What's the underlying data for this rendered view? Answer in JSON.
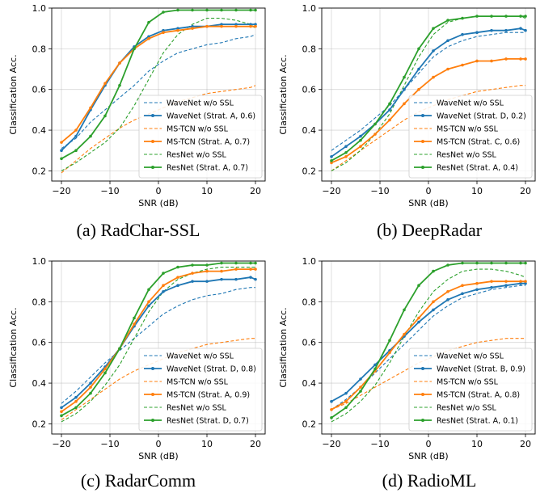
{
  "colors": {
    "WaveNet": "#1f77b4",
    "MS-TCN": "#ff7f0e",
    "ResNet": "#2ca02c"
  },
  "chart_data": [
    {
      "type": "line",
      "caption": "(a) RadChar-SSL",
      "xlabel": "SNR (dB)",
      "ylabel": "Classification Acc.",
      "xlim": [
        -22,
        22
      ],
      "ylim": [
        0.15,
        1.0
      ],
      "xticks": [
        -20,
        -10,
        0,
        10,
        20
      ],
      "yticks": [
        0.2,
        0.4,
        0.6,
        0.8,
        1.0
      ],
      "grid": true,
      "legend_position": "lower-right",
      "series": [
        {
          "name": "WaveNet w/o SSL",
          "model": "WaveNet",
          "style": "dashed",
          "x": [
            -20,
            -17,
            -14,
            -11,
            -8,
            -5,
            -2,
            1,
            4,
            7,
            10,
            13,
            16,
            19,
            20
          ],
          "y": [
            0.31,
            0.36,
            0.44,
            0.5,
            0.56,
            0.62,
            0.69,
            0.74,
            0.78,
            0.8,
            0.82,
            0.83,
            0.85,
            0.86,
            0.87
          ]
        },
        {
          "name": "WaveNet (Strat. A, 0.6)",
          "model": "WaveNet",
          "style": "solid",
          "x": [
            -20,
            -17,
            -14,
            -11,
            -8,
            -5,
            -2,
            1,
            4,
            7,
            10,
            13,
            16,
            19,
            20
          ],
          "y": [
            0.3,
            0.37,
            0.5,
            0.62,
            0.73,
            0.81,
            0.86,
            0.89,
            0.9,
            0.91,
            0.91,
            0.92,
            0.92,
            0.92,
            0.92
          ]
        },
        {
          "name": "MS-TCN w/o SSL",
          "model": "MS-TCN",
          "style": "dashed",
          "x": [
            -20,
            -17,
            -14,
            -11,
            -8,
            -5,
            -2,
            1,
            4,
            7,
            10,
            13,
            16,
            19,
            20
          ],
          "y": [
            0.19,
            0.25,
            0.31,
            0.36,
            0.41,
            0.45,
            0.48,
            0.51,
            0.54,
            0.56,
            0.58,
            0.59,
            0.6,
            0.61,
            0.62
          ]
        },
        {
          "name": "MS-TCN (Strat. A, 0.7)",
          "model": "MS-TCN",
          "style": "solid",
          "x": [
            -20,
            -17,
            -14,
            -11,
            -8,
            -5,
            -2,
            1,
            4,
            7,
            10,
            13,
            16,
            19,
            20
          ],
          "y": [
            0.34,
            0.4,
            0.51,
            0.63,
            0.73,
            0.8,
            0.85,
            0.88,
            0.89,
            0.9,
            0.91,
            0.91,
            0.91,
            0.91,
            0.91
          ]
        },
        {
          "name": "ResNet w/o SSL",
          "model": "ResNet",
          "style": "dashed",
          "x": [
            -20,
            -17,
            -14,
            -11,
            -8,
            -5,
            -2,
            1,
            4,
            7,
            10,
            13,
            16,
            19,
            20
          ],
          "y": [
            0.2,
            0.24,
            0.29,
            0.34,
            0.41,
            0.52,
            0.65,
            0.78,
            0.87,
            0.92,
            0.95,
            0.95,
            0.94,
            0.92,
            0.9
          ]
        },
        {
          "name": "ResNet (Strat. A, 0.7)",
          "model": "ResNet",
          "style": "solid",
          "x": [
            -20,
            -17,
            -14,
            -11,
            -8,
            -5,
            -2,
            1,
            4,
            7,
            10,
            13,
            16,
            19,
            20
          ],
          "y": [
            0.26,
            0.3,
            0.37,
            0.47,
            0.62,
            0.8,
            0.93,
            0.98,
            0.99,
            0.99,
            0.99,
            0.99,
            0.99,
            0.99,
            0.99
          ]
        }
      ]
    },
    {
      "type": "line",
      "caption": "(b) DeepRadar",
      "xlabel": "SNR (dB)",
      "ylabel": "Classification Acc.",
      "xlim": [
        -22,
        22
      ],
      "ylim": [
        0.15,
        1.0
      ],
      "xticks": [
        -20,
        -10,
        0,
        10,
        20
      ],
      "yticks": [
        0.2,
        0.4,
        0.6,
        0.8,
        1.0
      ],
      "grid": true,
      "legend_position": "lower-right",
      "series": [
        {
          "name": "WaveNet w/o SSL",
          "model": "WaveNet",
          "style": "dashed",
          "x": [
            -20,
            -17,
            -14,
            -11,
            -8,
            -5,
            -2,
            1,
            4,
            7,
            10,
            13,
            16,
            19,
            20
          ],
          "y": [
            0.3,
            0.35,
            0.4,
            0.46,
            0.52,
            0.6,
            0.68,
            0.76,
            0.81,
            0.84,
            0.86,
            0.87,
            0.88,
            0.88,
            0.88
          ]
        },
        {
          "name": "WaveNet (Strat. D, 0.2)",
          "model": "WaveNet",
          "style": "solid",
          "x": [
            -20,
            -17,
            -14,
            -11,
            -8,
            -5,
            -2,
            1,
            4,
            7,
            10,
            13,
            16,
            19,
            20
          ],
          "y": [
            0.27,
            0.32,
            0.37,
            0.43,
            0.5,
            0.6,
            0.7,
            0.79,
            0.84,
            0.87,
            0.88,
            0.89,
            0.89,
            0.9,
            0.89
          ]
        },
        {
          "name": "MS-TCN w/o SSL",
          "model": "MS-TCN",
          "style": "dashed",
          "x": [
            -20,
            -17,
            -14,
            -11,
            -8,
            -5,
            -2,
            1,
            4,
            7,
            10,
            13,
            16,
            19,
            20
          ],
          "y": [
            0.2,
            0.25,
            0.3,
            0.35,
            0.4,
            0.45,
            0.49,
            0.52,
            0.55,
            0.57,
            0.59,
            0.6,
            0.61,
            0.62,
            0.62
          ]
        },
        {
          "name": "MS-TCN (Strat. C, 0.6)",
          "model": "MS-TCN",
          "style": "solid",
          "x": [
            -20,
            -17,
            -14,
            -11,
            -8,
            -5,
            -2,
            1,
            4,
            7,
            10,
            13,
            16,
            19,
            20
          ],
          "y": [
            0.24,
            0.27,
            0.32,
            0.38,
            0.45,
            0.53,
            0.6,
            0.66,
            0.7,
            0.72,
            0.74,
            0.74,
            0.75,
            0.75,
            0.75
          ]
        },
        {
          "name": "ResNet w/o SSL",
          "model": "ResNet",
          "style": "dashed",
          "x": [
            -20,
            -17,
            -14,
            -11,
            -8,
            -5,
            -2,
            1,
            4,
            7,
            10,
            13,
            16,
            19,
            20
          ],
          "y": [
            0.2,
            0.24,
            0.3,
            0.38,
            0.48,
            0.62,
            0.76,
            0.87,
            0.93,
            0.95,
            0.96,
            0.96,
            0.96,
            0.96,
            0.95
          ]
        },
        {
          "name": "ResNet (Strat. A, 0.4)",
          "model": "ResNet",
          "style": "solid",
          "x": [
            -20,
            -17,
            -14,
            -11,
            -8,
            -5,
            -2,
            1,
            4,
            7,
            10,
            13,
            16,
            19,
            20
          ],
          "y": [
            0.25,
            0.29,
            0.35,
            0.43,
            0.53,
            0.66,
            0.8,
            0.9,
            0.94,
            0.95,
            0.96,
            0.96,
            0.96,
            0.96,
            0.96
          ]
        }
      ]
    },
    {
      "type": "line",
      "caption": "(c) RadarComm",
      "xlabel": "SNR (dB)",
      "ylabel": "Classification Acc.",
      "xlim": [
        -22,
        22
      ],
      "ylim": [
        0.15,
        1.0
      ],
      "xticks": [
        -20,
        -10,
        0,
        10,
        20
      ],
      "yticks": [
        0.2,
        0.4,
        0.6,
        0.8,
        1.0
      ],
      "grid": true,
      "legend_position": "lower-right",
      "series": [
        {
          "name": "WaveNet w/o SSL",
          "model": "WaveNet",
          "style": "dashed",
          "x": [
            -20,
            -17,
            -14,
            -11,
            -8,
            -5,
            -2,
            1,
            4,
            7,
            10,
            13,
            16,
            19,
            20
          ],
          "y": [
            0.3,
            0.36,
            0.43,
            0.5,
            0.56,
            0.62,
            0.68,
            0.74,
            0.78,
            0.81,
            0.83,
            0.84,
            0.86,
            0.87,
            0.87
          ]
        },
        {
          "name": "WaveNet (Strat. D, 0.8)",
          "model": "WaveNet",
          "style": "solid",
          "x": [
            -20,
            -17,
            -14,
            -11,
            -8,
            -5,
            -2,
            1,
            4,
            7,
            10,
            13,
            16,
            19,
            20
          ],
          "y": [
            0.28,
            0.33,
            0.4,
            0.48,
            0.57,
            0.68,
            0.78,
            0.85,
            0.88,
            0.9,
            0.9,
            0.91,
            0.91,
            0.92,
            0.91
          ]
        },
        {
          "name": "MS-TCN w/o SSL",
          "model": "MS-TCN",
          "style": "dashed",
          "x": [
            -20,
            -17,
            -14,
            -11,
            -8,
            -5,
            -2,
            1,
            4,
            7,
            10,
            13,
            16,
            19,
            20
          ],
          "y": [
            0.22,
            0.27,
            0.32,
            0.37,
            0.42,
            0.46,
            0.49,
            0.52,
            0.55,
            0.57,
            0.59,
            0.6,
            0.61,
            0.62,
            0.62
          ]
        },
        {
          "name": "MS-TCN (Strat. A, 0.9)",
          "model": "MS-TCN",
          "style": "solid",
          "x": [
            -20,
            -17,
            -14,
            -11,
            -8,
            -5,
            -2,
            1,
            4,
            7,
            10,
            13,
            16,
            19,
            20
          ],
          "y": [
            0.26,
            0.31,
            0.38,
            0.47,
            0.57,
            0.69,
            0.8,
            0.88,
            0.92,
            0.94,
            0.95,
            0.95,
            0.96,
            0.96,
            0.96
          ]
        },
        {
          "name": "ResNet w/o SSL",
          "model": "ResNet",
          "style": "dashed",
          "x": [
            -20,
            -17,
            -14,
            -11,
            -8,
            -5,
            -2,
            1,
            4,
            7,
            10,
            13,
            16,
            19,
            20
          ],
          "y": [
            0.21,
            0.25,
            0.31,
            0.39,
            0.49,
            0.62,
            0.75,
            0.85,
            0.91,
            0.94,
            0.96,
            0.97,
            0.97,
            0.97,
            0.97
          ]
        },
        {
          "name": "ResNet (Strat. D, 0.7)",
          "model": "ResNet",
          "style": "solid",
          "x": [
            -20,
            -17,
            -14,
            -11,
            -8,
            -5,
            -2,
            1,
            4,
            7,
            10,
            13,
            16,
            19,
            20
          ],
          "y": [
            0.24,
            0.28,
            0.35,
            0.45,
            0.57,
            0.72,
            0.86,
            0.94,
            0.97,
            0.98,
            0.98,
            0.99,
            0.99,
            0.99,
            0.99
          ]
        }
      ]
    },
    {
      "type": "line",
      "caption": "(d) RadioML",
      "xlabel": "SNR (dB)",
      "ylabel": "Classification Acc.",
      "xlim": [
        -22,
        22
      ],
      "ylim": [
        0.15,
        1.0
      ],
      "xticks": [
        -20,
        -10,
        0,
        10,
        20
      ],
      "yticks": [
        0.2,
        0.4,
        0.6,
        0.8,
        1.0
      ],
      "grid": true,
      "legend_position": "lower-right",
      "series": [
        {
          "name": "WaveNet w/o SSL",
          "model": "WaveNet",
          "style": "dashed",
          "x": [
            -20,
            -17,
            -14,
            -11,
            -8,
            -5,
            -2,
            1,
            4,
            7,
            10,
            13,
            16,
            19,
            20
          ],
          "y": [
            0.27,
            0.32,
            0.38,
            0.45,
            0.52,
            0.59,
            0.66,
            0.73,
            0.78,
            0.82,
            0.84,
            0.86,
            0.87,
            0.88,
            0.88
          ]
        },
        {
          "name": "WaveNet (Strat. B, 0.9)",
          "model": "WaveNet",
          "style": "solid",
          "x": [
            -20,
            -17,
            -14,
            -11,
            -8,
            -5,
            -2,
            1,
            4,
            7,
            10,
            13,
            16,
            19,
            20
          ],
          "y": [
            0.31,
            0.35,
            0.42,
            0.49,
            0.56,
            0.63,
            0.7,
            0.76,
            0.81,
            0.84,
            0.86,
            0.87,
            0.88,
            0.89,
            0.89
          ]
        },
        {
          "name": "MS-TCN w/o SSL",
          "model": "MS-TCN",
          "style": "dashed",
          "x": [
            -20,
            -17,
            -14,
            -11,
            -8,
            -5,
            -2,
            1,
            4,
            7,
            10,
            13,
            16,
            19,
            20
          ],
          "y": [
            0.27,
            0.3,
            0.34,
            0.38,
            0.42,
            0.46,
            0.5,
            0.53,
            0.56,
            0.58,
            0.6,
            0.61,
            0.62,
            0.62,
            0.62
          ]
        },
        {
          "name": "MS-TCN (Strat. A, 0.8)",
          "model": "MS-TCN",
          "style": "solid",
          "x": [
            -20,
            -17,
            -14,
            -11,
            -8,
            -5,
            -2,
            1,
            4,
            7,
            10,
            13,
            16,
            19,
            20
          ],
          "y": [
            0.27,
            0.31,
            0.38,
            0.46,
            0.55,
            0.64,
            0.72,
            0.8,
            0.85,
            0.88,
            0.89,
            0.9,
            0.9,
            0.9,
            0.9
          ]
        },
        {
          "name": "ResNet w/o SSL",
          "model": "ResNet",
          "style": "dashed",
          "x": [
            -20,
            -17,
            -14,
            -11,
            -8,
            -5,
            -2,
            1,
            4,
            7,
            10,
            13,
            16,
            19,
            20
          ],
          "y": [
            0.21,
            0.25,
            0.31,
            0.39,
            0.5,
            0.63,
            0.75,
            0.85,
            0.91,
            0.95,
            0.96,
            0.96,
            0.95,
            0.93,
            0.92
          ]
        },
        {
          "name": "ResNet (Strat. A, 0.1)",
          "model": "ResNet",
          "style": "solid",
          "x": [
            -20,
            -17,
            -14,
            -11,
            -8,
            -5,
            -2,
            1,
            4,
            7,
            10,
            13,
            16,
            19,
            20
          ],
          "y": [
            0.23,
            0.28,
            0.36,
            0.47,
            0.61,
            0.76,
            0.88,
            0.95,
            0.98,
            0.99,
            0.99,
            0.99,
            0.99,
            0.99,
            0.99
          ]
        }
      ]
    }
  ]
}
